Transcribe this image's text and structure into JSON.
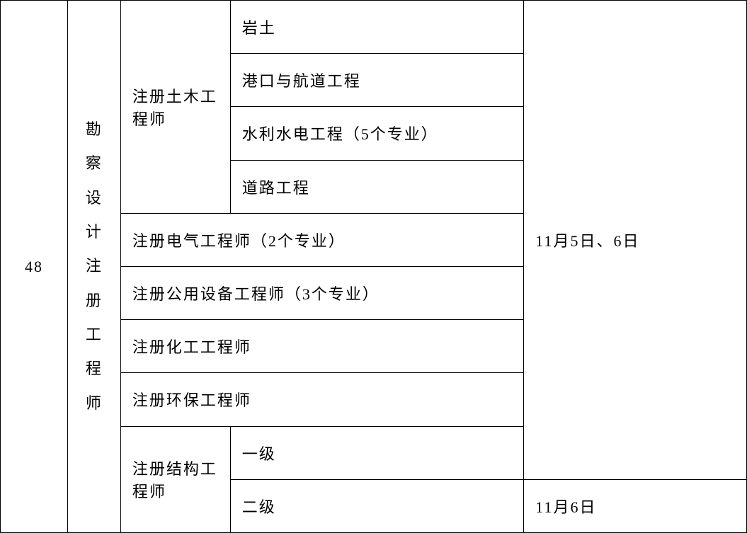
{
  "table": {
    "row_number": "48",
    "category": "勘察设计注册工程师",
    "civil_engineer_label": "注册土木工程师",
    "civil_subjects": {
      "geotech": "岩土",
      "port": "港口与航道工程",
      "water": "水利水电工程（5个专业）",
      "road": "道路工程"
    },
    "electrical": "注册电气工程师（2个专业）",
    "utility": "注册公用设备工程师（3个专业）",
    "chemical": "注册化工工程师",
    "environmental": "注册环保工程师",
    "structural_label": "注册结构工程师",
    "structural_level1": "一级",
    "structural_level2": "二级",
    "date_main": "11月5日、6日",
    "date_level2": "11月6日"
  },
  "styling": {
    "border_color": "#000000",
    "background_color": "#ffffff",
    "text_color": "#000000",
    "font_size": 22,
    "font_family": "SimSun"
  }
}
